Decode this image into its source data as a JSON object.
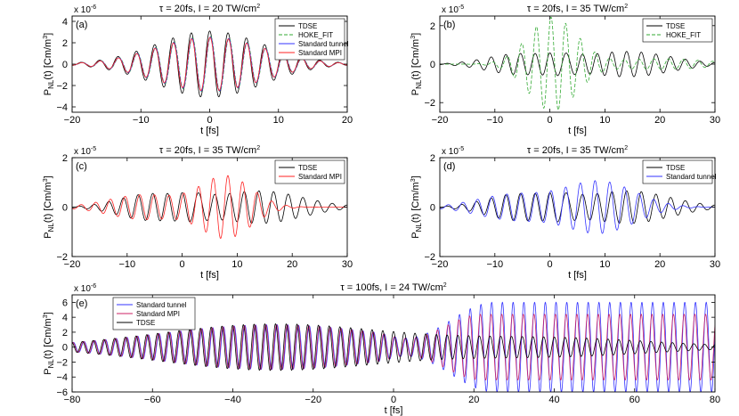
{
  "chart_data": [
    {
      "type": "line",
      "panel_label": "(a)",
      "title": "τ = 20fs, I = 20 TW/cm",
      "title_sup": "2",
      "xlabel": "t [fs]",
      "ylabel": "P_NL(t) [Cm/m^3]",
      "ylabel_parts": {
        "p": "P",
        "sub": "NL",
        "mid": "(t) [Cm/m",
        "sup": "3",
        "end": "]"
      },
      "multiplier": "x 10",
      "multiplier_exp": "-6",
      "xlim": [
        -20,
        20
      ],
      "ylim": [
        -4.5,
        4.5
      ],
      "xticks": [
        -20,
        -10,
        0,
        10,
        20
      ],
      "xtick_labels": [
        "−20",
        "−10",
        "0",
        "10",
        "20"
      ],
      "yticks": [
        -4,
        -2,
        0,
        2,
        4
      ],
      "ytick_labels": [
        "−4",
        "−2",
        "0",
        "2",
        "4"
      ],
      "grid": false,
      "legend_position": "top-right",
      "period_fs": 2.67,
      "gaussian_width_fs": 11,
      "series": [
        {
          "name": "TDSE",
          "color": "#000000",
          "dash": "",
          "peak": 3.1,
          "phase_fs": 0.0
        },
        {
          "name": "HOKE_FIT",
          "color": "#33aa33",
          "dash": "4,2",
          "peak": 2.6,
          "phase_fs": 0.15
        },
        {
          "name": "Standard tunnel",
          "color": "#3333ff",
          "dash": "",
          "peak": 2.55,
          "phase_fs": 0.1
        },
        {
          "name": "Standard MPI",
          "color": "#ff2222",
          "dash": "",
          "peak": 2.5,
          "phase_fs": 0.05
        }
      ]
    },
    {
      "type": "line",
      "panel_label": "(b)",
      "title": "τ = 20fs, I = 35 TW/cm",
      "title_sup": "2",
      "xlabel": "t [fs]",
      "ylabel": "P_NL(t) [Cm/m^3]",
      "ylabel_parts": {
        "p": "P",
        "sub": "NL",
        "mid": "(t) [Cm/m",
        "sup": "3",
        "end": "]"
      },
      "multiplier": "x 10",
      "multiplier_exp": "-5",
      "xlim": [
        -20,
        30
      ],
      "ylim": [
        -2.5,
        2.5
      ],
      "xticks": [
        -20,
        -10,
        0,
        10,
        20,
        30
      ],
      "xtick_labels": [
        "−20",
        "−10",
        "0",
        "10",
        "20",
        "30"
      ],
      "yticks": [
        -2,
        0,
        2
      ],
      "ytick_labels": [
        "−2",
        "0",
        "2"
      ],
      "grid": false,
      "legend_position": "top-right",
      "period_fs": 2.67,
      "series": [
        {
          "name": "TDSE",
          "color": "#000000",
          "dash": "",
          "shape": "tdse35"
        },
        {
          "name": "HOKE_FIT",
          "color": "#33aa33",
          "dash": "4,2",
          "shape": "hoke35"
        }
      ]
    },
    {
      "type": "line",
      "panel_label": "(c)",
      "title": "τ = 20fs, I = 35 TW/cm",
      "title_sup": "2",
      "xlabel": "t [fs]",
      "ylabel": "P_NL(t) [Cm/m^3]",
      "ylabel_parts": {
        "p": "P",
        "sub": "NL",
        "mid": "(t) [Cm/m",
        "sup": "3",
        "end": "]"
      },
      "multiplier": "x 10",
      "multiplier_exp": "-5",
      "xlim": [
        -20,
        30
      ],
      "ylim": [
        -2,
        2
      ],
      "xticks": [
        -20,
        -10,
        0,
        10,
        20,
        30
      ],
      "xtick_labels": [
        "−20",
        "−10",
        "0",
        "10",
        "20",
        "30"
      ],
      "yticks": [
        -2,
        0,
        2
      ],
      "ytick_labels": [
        "−2",
        "0",
        "2"
      ],
      "grid": false,
      "legend_position": "top-right",
      "period_fs": 2.67,
      "series": [
        {
          "name": "TDSE",
          "color": "#000000",
          "dash": "",
          "shape": "tdse35"
        },
        {
          "name": "Standard MPI",
          "color": "#ff2222",
          "dash": "",
          "shape": "mpi35"
        }
      ]
    },
    {
      "type": "line",
      "panel_label": "(d)",
      "title": "τ = 20fs, I = 35 TW/cm",
      "title_sup": "2",
      "xlabel": "t [fs]",
      "ylabel": "P_NL(t) [Cm/m^3]",
      "ylabel_parts": {
        "p": "P",
        "sub": "NL",
        "mid": "(t) [Cm/m",
        "sup": "3",
        "end": "]"
      },
      "multiplier": "x 10",
      "multiplier_exp": "-5",
      "xlim": [
        -20,
        30
      ],
      "ylim": [
        -2,
        2
      ],
      "xticks": [
        -20,
        -10,
        0,
        10,
        20,
        30
      ],
      "xtick_labels": [
        "−20",
        "−10",
        "0",
        "10",
        "20",
        "30"
      ],
      "yticks": [
        -2,
        0,
        2
      ],
      "ytick_labels": [
        "−2",
        "0",
        "2"
      ],
      "grid": false,
      "legend_position": "top-right",
      "period_fs": 2.67,
      "series": [
        {
          "name": "TDSE",
          "color": "#000000",
          "dash": "",
          "shape": "tdse35"
        },
        {
          "name": "Standard tunnel",
          "color": "#3333ff",
          "dash": "",
          "shape": "tunnel35"
        }
      ]
    },
    {
      "type": "line",
      "panel_label": "(e)",
      "title": "τ = 100fs, I = 24 TW/cm",
      "title_sup": "2",
      "xlabel": "t [fs]",
      "ylabel": "P_NL(t) [Cm/m^3]",
      "ylabel_parts": {
        "p": "P",
        "sub": "NL",
        "mid": "(t) [Cm/m",
        "sup": "3",
        "end": "]"
      },
      "multiplier": "x 10",
      "multiplier_exp": "-6",
      "xlim": [
        -80,
        80
      ],
      "ylim": [
        -6,
        7
      ],
      "xticks": [
        -80,
        -60,
        -40,
        -20,
        0,
        20,
        40,
        60,
        80
      ],
      "xtick_labels": [
        "−80",
        "−60",
        "−40",
        "−20",
        "0",
        "20",
        "40",
        "60",
        "80"
      ],
      "yticks": [
        -6,
        -4,
        -2,
        0,
        2,
        4,
        6
      ],
      "ytick_labels": [
        "−6",
        "−4",
        "−2",
        "0",
        "2",
        "4",
        "6"
      ],
      "grid": false,
      "legend_position": "top-left",
      "period_fs": 2.67,
      "series": [
        {
          "name": "Standard tunnel",
          "color": "#3333ff",
          "dash": "",
          "shape": "tunnel24"
        },
        {
          "name": "Standard MPI",
          "color": "#cc2266",
          "dash": "",
          "shape": "mpi24"
        },
        {
          "name": "TDSE",
          "color": "#000000",
          "dash": "",
          "shape": "tdse24"
        }
      ]
    }
  ]
}
